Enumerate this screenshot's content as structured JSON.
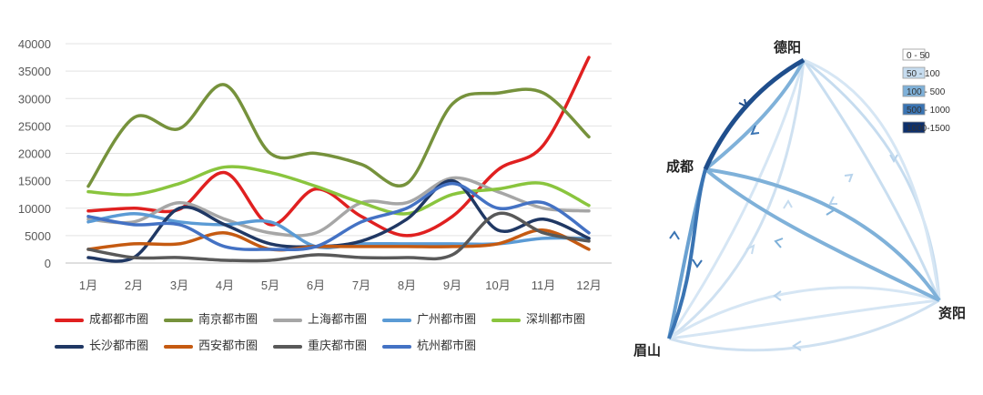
{
  "chart_data": [
    {
      "type": "line",
      "categories": [
        "1月",
        "2月",
        "3月",
        "4月",
        "5月",
        "6月",
        "7月",
        "8月",
        "9月",
        "10月",
        "11月",
        "12月"
      ],
      "ylim": [
        0,
        40000
      ],
      "yticks": [
        0,
        5000,
        10000,
        15000,
        20000,
        25000,
        30000,
        35000,
        40000
      ],
      "grid": true,
      "legend_position": "bottom",
      "series": [
        {
          "name": "成都都市圈",
          "color": "#e02020",
          "values": [
            9500,
            10000,
            9800,
            16500,
            7000,
            13500,
            8500,
            5000,
            8500,
            17000,
            21500,
            37500
          ]
        },
        {
          "name": "南京都市圈",
          "color": "#76923c",
          "values": [
            14000,
            26500,
            24500,
            32500,
            20000,
            20000,
            18000,
            14500,
            29000,
            31000,
            31000,
            23000
          ]
        },
        {
          "name": "上海都市圈",
          "color": "#a6a6a6",
          "values": [
            8000,
            7500,
            11000,
            8000,
            5500,
            5500,
            11000,
            11000,
            15500,
            13000,
            10000,
            9500
          ]
        },
        {
          "name": "广州都市圈",
          "color": "#5b9bd5",
          "values": [
            7500,
            9000,
            7500,
            7000,
            7500,
            3000,
            3500,
            3500,
            3500,
            3500,
            4500,
            4500
          ]
        },
        {
          "name": "深圳都市圈",
          "color": "#8ac53e",
          "values": [
            13000,
            12500,
            14500,
            17500,
            16500,
            14000,
            11000,
            9000,
            12500,
            13500,
            14500,
            10500
          ]
        },
        {
          "name": "长沙都市圈",
          "color": "#203864",
          "values": [
            1000,
            1000,
            10000,
            7000,
            3500,
            3000,
            4000,
            8000,
            15000,
            6000,
            8000,
            4500
          ]
        },
        {
          "name": "西安都市圈",
          "color": "#c55a11",
          "values": [
            2500,
            3500,
            3500,
            5500,
            2500,
            3000,
            3000,
            3000,
            3000,
            3500,
            6000,
            2500
          ]
        },
        {
          "name": "重庆都市圈",
          "color": "#595959",
          "values": [
            2500,
            1000,
            1000,
            500,
            500,
            1500,
            1000,
            1000,
            1500,
            9000,
            5500,
            4000
          ]
        },
        {
          "name": "杭州都市圈",
          "color": "#4472c4",
          "values": [
            8500,
            7000,
            7000,
            3000,
            2500,
            3000,
            7500,
            10000,
            14500,
            10000,
            11000,
            5500
          ]
        }
      ]
    }
  ],
  "flow_diagram": {
    "nodes": {
      "deyang": "德阳",
      "chengdu": "成都",
      "ziyang": "资阳",
      "meishan": "眉山"
    },
    "legend": [
      {
        "label": "0 - 50",
        "color": "#ffffff"
      },
      {
        "label": "50 - 100",
        "color": "#c6dcef"
      },
      {
        "label": "100 - 500",
        "color": "#7fb1d9"
      },
      {
        "label": "500 - 1000",
        "color": "#3a74b3"
      },
      {
        "label": "1000-1500",
        "color": "#0d2f6b"
      }
    ]
  }
}
